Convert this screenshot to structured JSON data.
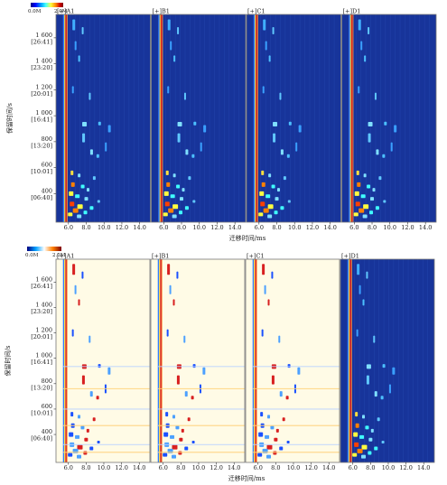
{
  "chart_data": [
    {
      "type": "heatmap",
      "title": "",
      "xlabel": "迁移时间/ms",
      "ylabel": "保留时间/s",
      "colorbar": {
        "min_label": "0.0M",
        "max_label": "2.0M",
        "colors": [
          "#00007f",
          "#0000ff",
          "#00a0ff",
          "#40ffff",
          "#ffff40",
          "#ff8000",
          "#d00000",
          "#7f0000"
        ]
      },
      "panels": [
        "[+]A1",
        "[+]B1",
        "[+]C1",
        "[+]D1"
      ],
      "x_ticks": [
        6.0,
        8.0,
        10.0,
        12.0,
        14.0
      ],
      "x_tick_labels": [
        "6.0",
        "8.0",
        "10.0",
        "12.0",
        "14.0"
      ],
      "xlim": [
        4.6,
        15.2
      ],
      "ylim": [
        180,
        1780
      ],
      "y_ticks": [
        {
          "value": 1600,
          "label": "1 600",
          "sub": "[26:41]"
        },
        {
          "value": 1400,
          "label": "1 400",
          "sub": "[23:20]"
        },
        {
          "value": 1200,
          "label": "1 200",
          "sub": "[20:01]"
        },
        {
          "value": 1000,
          "label": "1 000",
          "sub": "[16:41]"
        },
        {
          "value": 800,
          "label": "800",
          "sub": "[13:20]"
        },
        {
          "value": 600,
          "label": "600",
          "sub": "[10:01]"
        },
        {
          "value": 400,
          "label": "400",
          "sub": "[06:40]"
        }
      ],
      "background": "#17349a",
      "reactant_ion_peak_x": 5.55
    },
    {
      "type": "heatmap",
      "title": "",
      "xlabel": "迁移时间/ms",
      "ylabel": "保留时间/s",
      "colorbar": {
        "min_label": "0.0M",
        "max_label": "2.0M",
        "colors": [
          "#00007f",
          "#0000ff",
          "#00a0ff",
          "#40ffff",
          "#ffff40",
          "#ff8000",
          "#d00000",
          "#7f0000"
        ]
      },
      "panels": [
        "[+]A1",
        "[+]B1",
        "[+]C1",
        "[+]D1"
      ],
      "panel_modes": [
        "difference",
        "difference",
        "difference",
        "reference"
      ],
      "x_ticks": [
        6.0,
        8.0,
        10.0,
        12.0,
        14.0
      ],
      "x_tick_labels": [
        "6.0",
        "8.0",
        "10.0",
        "12.0",
        "14.0"
      ],
      "xlim": [
        4.6,
        15.2
      ],
      "ylim": [
        180,
        1780
      ],
      "y_ticks": [
        {
          "value": 1600,
          "label": "1 600",
          "sub": "[26:41]"
        },
        {
          "value": 1400,
          "label": "1 400",
          "sub": "[23:20]"
        },
        {
          "value": 1200,
          "label": "1 200",
          "sub": "[20:01]"
        },
        {
          "value": 1000,
          "label": "1 000",
          "sub": "[16:41]"
        },
        {
          "value": 800,
          "label": "800",
          "sub": "[13:20]"
        },
        {
          "value": 600,
          "label": "600",
          "sub": "[10:01]"
        },
        {
          "value": 400,
          "label": "400",
          "sub": "[06:40]"
        }
      ],
      "background": "#fffbe6",
      "reference_background": "#17349a",
      "reactant_ion_peak_x": 5.55
    }
  ],
  "spots": [
    {
      "x": 6.6,
      "y": 1700,
      "w": 3,
      "h": 12,
      "c": "#40b0ff"
    },
    {
      "x": 7.6,
      "y": 1655,
      "w": 2,
      "h": 8,
      "c": "#60c8ff"
    },
    {
      "x": 6.8,
      "y": 1540,
      "w": 2,
      "h": 10,
      "c": "#3aa0ff"
    },
    {
      "x": 7.2,
      "y": 1440,
      "w": 2,
      "h": 7,
      "c": "#4cc0ff"
    },
    {
      "x": 6.5,
      "y": 1200,
      "w": 2,
      "h": 8,
      "c": "#3aa0ff"
    },
    {
      "x": 8.4,
      "y": 1150,
      "w": 2,
      "h": 8,
      "c": "#60c8ff"
    },
    {
      "x": 7.8,
      "y": 935,
      "w": 5,
      "h": 5,
      "c": "#7fe0ff"
    },
    {
      "x": 9.5,
      "y": 940,
      "w": 3,
      "h": 4,
      "c": "#4cc0ff"
    },
    {
      "x": 10.6,
      "y": 900,
      "w": 3,
      "h": 8,
      "c": "#3aa0ff"
    },
    {
      "x": 7.7,
      "y": 830,
      "w": 3,
      "h": 10,
      "c": "#60c8ff"
    },
    {
      "x": 10.2,
      "y": 760,
      "w": 2,
      "h": 10,
      "c": "#3aa0ff"
    },
    {
      "x": 8.6,
      "y": 720,
      "w": 3,
      "h": 6,
      "c": "#7fe0ff"
    },
    {
      "x": 9.3,
      "y": 690,
      "w": 3,
      "h": 4,
      "c": "#4cc0ff"
    },
    {
      "x": 6.4,
      "y": 560,
      "w": 3,
      "h": 5,
      "c": "#ffe040"
    },
    {
      "x": 7.2,
      "y": 540,
      "w": 3,
      "h": 4,
      "c": "#7fe0ff"
    },
    {
      "x": 8.9,
      "y": 520,
      "w": 3,
      "h": 4,
      "c": "#60c8ff"
    },
    {
      "x": 6.5,
      "y": 470,
      "w": 4,
      "h": 5,
      "c": "#ff8000"
    },
    {
      "x": 7.6,
      "y": 455,
      "w": 4,
      "h": 4,
      "c": "#40ffff"
    },
    {
      "x": 8.2,
      "y": 430,
      "w": 3,
      "h": 4,
      "c": "#7fe0ff"
    },
    {
      "x": 6.3,
      "y": 400,
      "w": 5,
      "h": 5,
      "c": "#ffff40"
    },
    {
      "x": 7.0,
      "y": 380,
      "w": 5,
      "h": 4,
      "c": "#40ffff"
    },
    {
      "x": 8.0,
      "y": 360,
      "w": 4,
      "h": 4,
      "c": "#7fe0ff"
    },
    {
      "x": 9.4,
      "y": 340,
      "w": 3,
      "h": 3,
      "c": "#60c8ff"
    },
    {
      "x": 6.4,
      "y": 320,
      "w": 5,
      "h": 5,
      "c": "#ff4000"
    },
    {
      "x": 7.3,
      "y": 300,
      "w": 6,
      "h": 5,
      "c": "#ffff40"
    },
    {
      "x": 8.6,
      "y": 290,
      "w": 4,
      "h": 4,
      "c": "#40ffff"
    },
    {
      "x": 6.8,
      "y": 270,
      "w": 6,
      "h": 5,
      "c": "#ff8000"
    },
    {
      "x": 7.9,
      "y": 255,
      "w": 4,
      "h": 4,
      "c": "#40ffff"
    },
    {
      "x": 6.2,
      "y": 240,
      "w": 5,
      "h": 4,
      "c": "#ffff40"
    },
    {
      "x": 7.2,
      "y": 225,
      "w": 5,
      "h": 4,
      "c": "#7fe0ff"
    }
  ]
}
